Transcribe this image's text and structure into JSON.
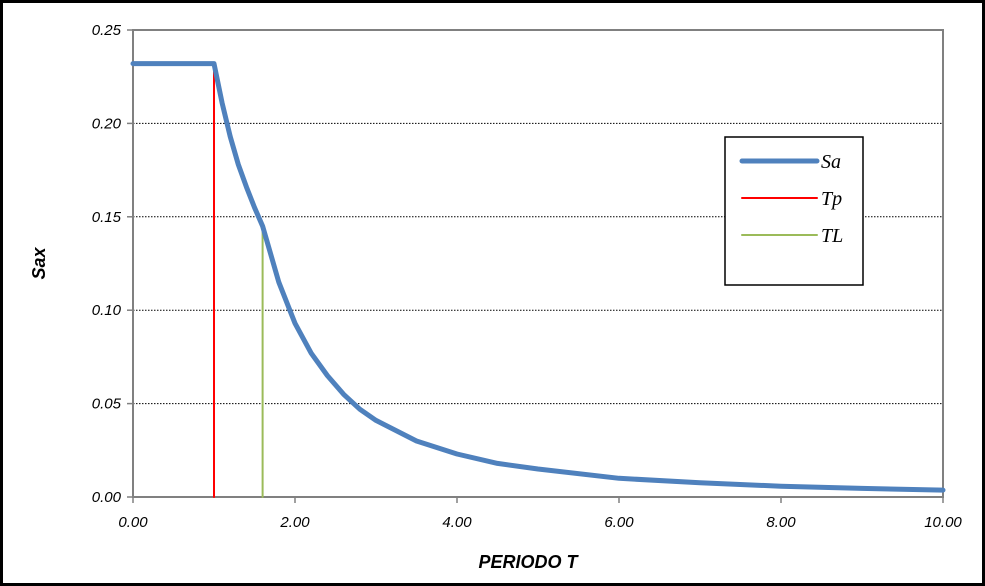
{
  "chart_data": {
    "type": "line",
    "title": "",
    "xlabel": "PERIODO T",
    "ylabel": "Sax",
    "xlim": [
      0,
      10
    ],
    "ylim": [
      0,
      0.25
    ],
    "x_ticks": [
      "0.00",
      "2.00",
      "4.00",
      "6.00",
      "8.00",
      "10.00"
    ],
    "y_ticks": [
      "0.00",
      "0.05",
      "0.10",
      "0.15",
      "0.20",
      "0.25"
    ],
    "grid": "horizontal dotted",
    "legend_position": "right",
    "series": [
      {
        "name": "Sa",
        "color": "#4F81BD",
        "x": [
          0,
          1.0,
          1.1,
          1.2,
          1.3,
          1.4,
          1.5,
          1.6,
          1.8,
          2.0,
          2.2,
          2.4,
          2.6,
          2.8,
          3.0,
          3.5,
          4.0,
          4.5,
          5.0,
          6.0,
          7.0,
          8.0,
          9.0,
          10.0
        ],
        "y": [
          0.232,
          0.232,
          0.211,
          0.193,
          0.178,
          0.166,
          0.155,
          0.145,
          0.115,
          0.093,
          0.077,
          0.065,
          0.055,
          0.047,
          0.041,
          0.03,
          0.023,
          0.018,
          0.015,
          0.01,
          0.0076,
          0.0058,
          0.0046,
          0.0037
        ]
      },
      {
        "name": "Tp",
        "color": "#FF0000",
        "x": [
          1.0,
          1.0
        ],
        "y": [
          0,
          0.232
        ]
      },
      {
        "name": "TL",
        "color": "#9BBB59",
        "x": [
          1.6,
          1.6
        ],
        "y": [
          0,
          0.145
        ]
      }
    ]
  }
}
